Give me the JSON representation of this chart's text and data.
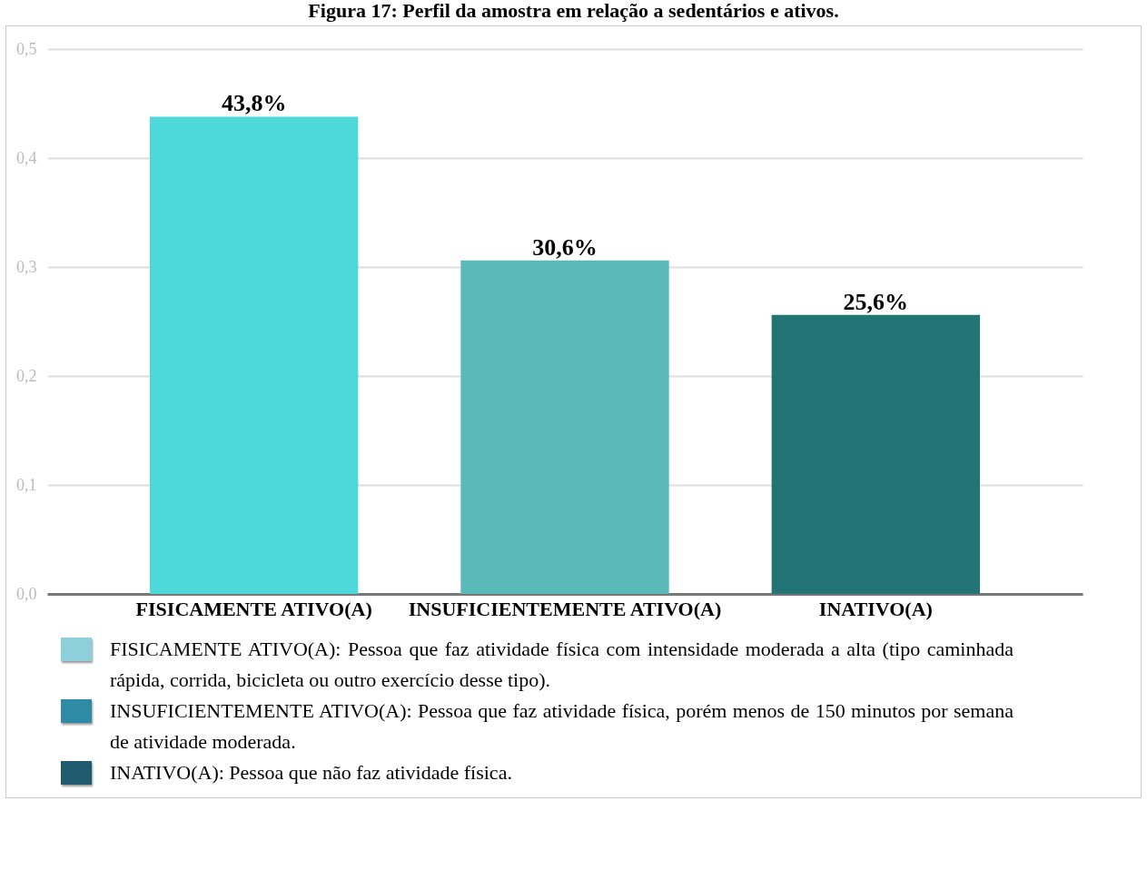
{
  "chart_data": {
    "type": "bar",
    "title": "Figura 17: Perfil da amostra em relação a sedentários e ativos.",
    "categories": [
      "FISICAMENTE ATIVO(A)",
      "INSUFICIENTEMENTE ATIVO(A)",
      "INATIVO(A)"
    ],
    "values": [
      0.438,
      0.306,
      0.256
    ],
    "value_labels": [
      "43,8%",
      "30,6%",
      "25,6%"
    ],
    "colors": [
      "#4dd9d9",
      "#5bbab9",
      "#237474"
    ],
    "ylim": [
      0,
      0.5
    ],
    "yticks": [
      {
        "value": 0,
        "label": "0,0"
      },
      {
        "value": 0.1,
        "label": "0,1"
      },
      {
        "value": 0.2,
        "label": "0,2"
      },
      {
        "value": 0.3,
        "label": "0,3"
      },
      {
        "value": 0.4,
        "label": "0,4"
      },
      {
        "value": 0.5,
        "label": "0,5"
      }
    ],
    "grid": "y",
    "annotations": [
      "FISICAMENTE ATIVO(A): Pessoa que faz atividade física com intensidade moderada a alta (tipo caminhada rápida, corrida, bicicleta ou outro exercício desse tipo).",
      "INSUFICIENTEMENTE ATIVO(A): Pessoa que faz atividade física, porém menos de 150 minutos por semana de atividade moderada.",
      "INATIVO(A): Pessoa que não faz atividade física."
    ]
  }
}
